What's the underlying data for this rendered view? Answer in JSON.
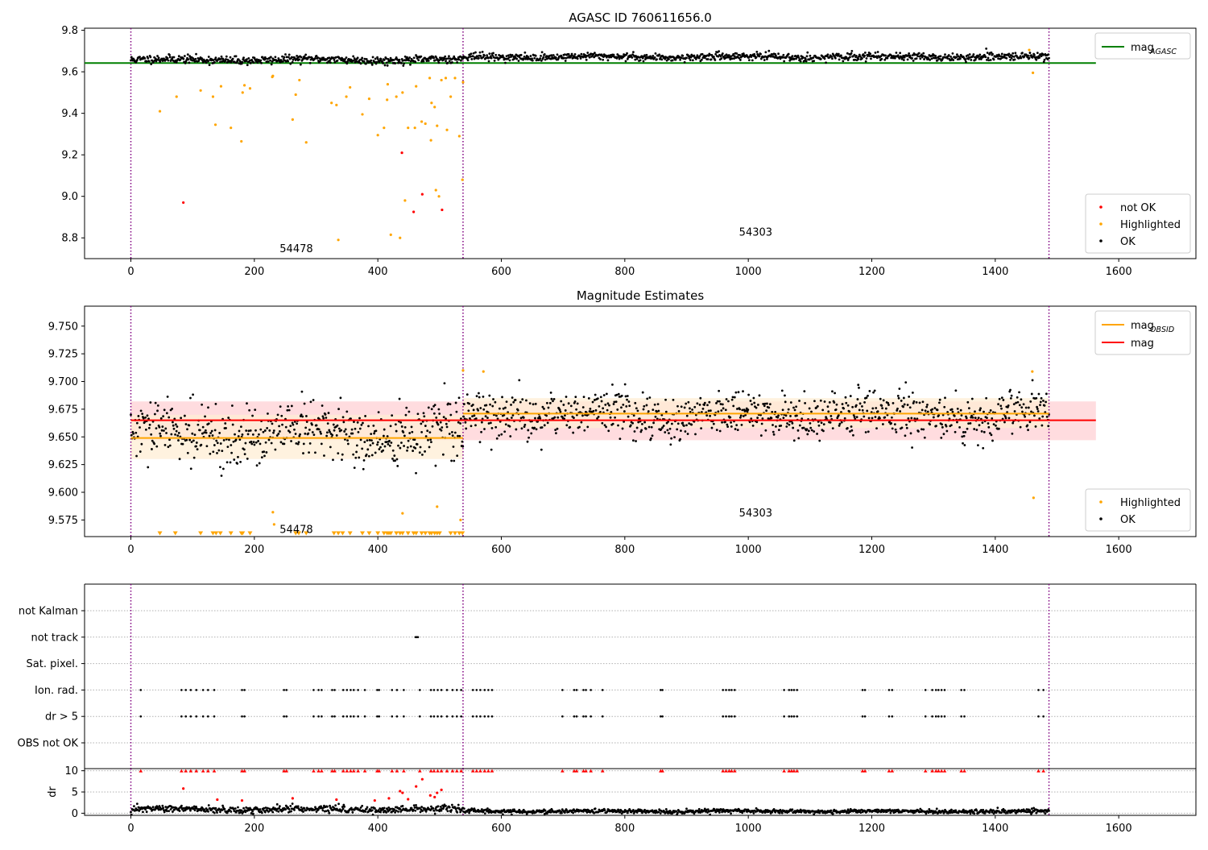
{
  "colors": {
    "ok": "#000000",
    "highlighted": "#ffa500",
    "not_ok": "#ff0000",
    "agasc_line": "#008000",
    "mag_line": "#ff0000",
    "obsid_line": "#ffa500",
    "obsid_boundary": "#800080",
    "mag_band": "#ffd0d4",
    "obsid_band": "#ffedd4",
    "grid": "#b0b0b0"
  },
  "chart_data": [
    {
      "type": "scatter",
      "title": "AGASC ID 760611656.0",
      "xlim": [
        -75,
        1725
      ],
      "ylim": [
        8.7,
        9.81
      ],
      "xticks": [
        0,
        200,
        400,
        600,
        800,
        1000,
        1200,
        1400,
        1600
      ],
      "yticks": [
        8.8,
        9.0,
        9.2,
        9.4,
        9.6,
        9.8
      ],
      "obsid_boundaries": [
        0,
        538,
        1487
      ],
      "annotations": [
        {
          "text": "54478",
          "x": 268,
          "y": 8.75
        },
        {
          "text": "54303",
          "x": 1012,
          "y": 8.83
        }
      ],
      "reference_lines": [
        {
          "name": "mag_AGASC",
          "label_main": "mag",
          "label_sub": "AGASC",
          "y": 9.642,
          "x_range": [
            -75,
            1563
          ],
          "color": "#008000"
        }
      ],
      "legend_lines": {
        "position": "top-right",
        "entries": [
          {
            "main": "mag",
            "sub": "AGASC",
            "color": "#008000"
          }
        ]
      },
      "legend_points": {
        "position": "bottom-right",
        "entries": [
          {
            "label": "not OK",
            "color": "#ff0000"
          },
          {
            "label": "Highlighted",
            "color": "#ffa500"
          },
          {
            "label": "OK",
            "color": "#000000"
          }
        ]
      },
      "series": [
        {
          "name": "OK",
          "color": "#000000",
          "generated": {
            "x_range": [
              0,
              1487
            ],
            "segments": [
              {
                "x_range": [
                  0,
                  538
                ],
                "mean": 9.658,
                "spread": 0.012
              },
              {
                "x_range": [
                  538,
                  1487
                ],
                "mean": 9.672,
                "spread": 0.011
              }
            ],
            "count": 1450
          }
        },
        {
          "name": "Highlighted",
          "color": "#ffa500",
          "x": [
            47,
            74,
            113,
            133,
            137,
            146,
            162,
            179,
            181,
            184,
            193,
            229,
            230,
            262,
            267,
            273,
            284,
            325,
            333,
            336,
            349,
            355,
            375,
            386,
            400,
            410,
            415,
            416,
            421,
            430,
            436,
            440,
            444,
            449,
            460,
            462,
            471,
            477,
            484,
            486,
            487,
            492,
            494,
            496,
            499,
            503,
            510,
            512,
            518,
            525,
            532,
            537,
            538,
            1455,
            1461
          ],
          "y": [
            9.41,
            9.48,
            9.51,
            9.48,
            9.345,
            9.53,
            9.33,
            9.265,
            9.5,
            9.535,
            9.52,
            9.575,
            9.58,
            9.37,
            9.49,
            9.56,
            9.26,
            9.45,
            9.44,
            8.79,
            9.48,
            9.525,
            9.395,
            9.47,
            9.295,
            9.33,
            9.465,
            9.54,
            8.815,
            9.48,
            8.8,
            9.5,
            8.98,
            9.33,
            9.33,
            9.53,
            9.36,
            9.35,
            9.57,
            9.27,
            9.45,
            9.43,
            9.03,
            9.34,
            9.0,
            9.56,
            9.57,
            9.32,
            9.48,
            9.57,
            9.29,
            9.08,
            9.55,
            9.705,
            9.595
          ]
        },
        {
          "name": "not OK",
          "color": "#ff0000",
          "x": [
            85,
            439,
            458,
            472,
            504
          ],
          "y": [
            8.97,
            9.21,
            8.925,
            9.01,
            8.935
          ]
        }
      ]
    },
    {
      "type": "scatter",
      "title": "Magnitude Estimates",
      "xlim": [
        -75,
        1725
      ],
      "ylim": [
        9.56,
        9.768
      ],
      "xticks": [
        0,
        200,
        400,
        600,
        800,
        1000,
        1200,
        1400,
        1600
      ],
      "yticks": [
        9.575,
        9.6,
        9.625,
        9.65,
        9.675,
        9.7,
        9.725,
        9.75
      ],
      "obsid_boundaries": [
        0,
        538,
        1487
      ],
      "annotations": [
        {
          "text": "54478",
          "x": 268,
          "y": 9.567
        },
        {
          "text": "54303",
          "x": 1012,
          "y": 9.582
        }
      ],
      "bands": [
        {
          "name": "mag_band",
          "y_range": [
            9.647,
            9.682
          ],
          "x_range": [
            0,
            1563
          ],
          "color": "#ffd0d4"
        },
        {
          "name": "obsid_band_1",
          "y_range": [
            9.63,
            9.67
          ],
          "x_range": [
            0,
            538
          ],
          "color": "#ffedd4"
        },
        {
          "name": "obsid_band_2",
          "y_range": [
            9.658,
            9.685
          ],
          "x_range": [
            538,
            1487
          ],
          "color": "#ffedd4"
        }
      ],
      "reference_lines": [
        {
          "name": "mag_OBSID_1",
          "y": 9.649,
          "x_range": [
            0,
            538
          ],
          "color": "#ffa500"
        },
        {
          "name": "mag_OBSID_2",
          "y": 9.671,
          "x_range": [
            538,
            1487
          ],
          "color": "#ffa500"
        },
        {
          "name": "mag",
          "y": 9.665,
          "x_range": [
            0,
            1563
          ],
          "color": "#ff0000"
        }
      ],
      "legend_lines": {
        "position": "top-right",
        "entries": [
          {
            "main": "mag",
            "sub": "OBSID",
            "color": "#ffa500"
          },
          {
            "main": "mag",
            "sub": "",
            "color": "#ff0000"
          }
        ]
      },
      "legend_points": {
        "position": "bottom-right",
        "entries": [
          {
            "label": "Highlighted",
            "color": "#ffa500"
          },
          {
            "label": "OK",
            "color": "#000000"
          }
        ]
      },
      "series": [
        {
          "name": "OK",
          "color": "#000000",
          "generated": {
            "x_range": [
              0,
              1487
            ],
            "segments": [
              {
                "x_range": [
                  0,
                  538
                ],
                "mean": 9.652,
                "spread": 0.016
              },
              {
                "x_range": [
                  538,
                  1487
                ],
                "mean": 9.67,
                "spread": 0.013
              }
            ],
            "count": 1450
          }
        },
        {
          "name": "Highlighted",
          "color": "#ffa500",
          "x": [
            230,
            232,
            440,
            496,
            534,
            538,
            571,
            1460,
            1462
          ],
          "y": [
            9.582,
            9.571,
            9.581,
            9.587,
            9.575,
            9.71,
            9.709,
            9.709,
            9.595
          ]
        },
        {
          "name": "Highlighted (below range)",
          "color": "#ffa500",
          "marker": "triangle-down",
          "x": [
            47,
            72,
            113,
            133,
            138,
            145,
            162,
            179,
            181,
            193,
            267,
            272,
            284,
            329,
            336,
            343,
            355,
            375,
            386,
            400,
            410,
            415,
            418,
            421,
            430,
            436,
            440,
            449,
            458,
            462,
            471,
            477,
            484,
            487,
            492,
            496,
            500,
            518,
            525,
            532,
            537
          ],
          "y_value": "below"
        }
      ]
    },
    {
      "type": "scatter",
      "title": "",
      "xlim": [
        -75,
        1725
      ],
      "flag_rows": [
        "not Kalman",
        "not track",
        "Sat. pixel.",
        "Ion. rad.",
        "dr > 5",
        "OBS not OK"
      ],
      "obsid_boundaries": [
        0,
        538,
        1487
      ],
      "flag_events": {
        "not track": [
          461,
          463,
          465
        ],
        "Ion. rad.": [
          16,
          82,
          89,
          97,
          106,
          117,
          125,
          135,
          180,
          184,
          248,
          252,
          296,
          304,
          309,
          326,
          330,
          344,
          350,
          356,
          361,
          368,
          379,
          399,
          402,
          423,
          431,
          442,
          468,
          486,
          491,
          497,
          503,
          512,
          521,
          528,
          535,
          554,
          560,
          566,
          573,
          579,
          585,
          699,
          718,
          722,
          733,
          737,
          745,
          764,
          858,
          861,
          959,
          964,
          969,
          973,
          978,
          1058,
          1066,
          1070,
          1074,
          1079,
          1185,
          1189,
          1228,
          1233,
          1287,
          1298,
          1304,
          1308,
          1313,
          1318,
          1345,
          1350,
          1470,
          1478
        ],
        "dr > 5": [
          16,
          82,
          89,
          97,
          106,
          117,
          125,
          135,
          180,
          184,
          248,
          252,
          296,
          304,
          309,
          326,
          330,
          344,
          350,
          356,
          361,
          368,
          379,
          399,
          402,
          423,
          431,
          442,
          468,
          486,
          491,
          497,
          503,
          512,
          521,
          528,
          535,
          554,
          560,
          566,
          573,
          579,
          585,
          699,
          718,
          722,
          733,
          737,
          745,
          764,
          858,
          861,
          959,
          964,
          969,
          973,
          978,
          1058,
          1066,
          1070,
          1074,
          1079,
          1185,
          1189,
          1228,
          1233,
          1287,
          1298,
          1304,
          1308,
          1313,
          1318,
          1345,
          1350,
          1470,
          1478
        ]
      }
    },
    {
      "type": "scatter",
      "title": "",
      "ylabel": "dr",
      "xlim": [
        -75,
        1725
      ],
      "ylim": [
        -0.5,
        10.5
      ],
      "xticks": [
        0,
        200,
        400,
        600,
        800,
        1000,
        1200,
        1400,
        1600
      ],
      "yticks": [
        0,
        5,
        10
      ],
      "obsid_boundaries": [
        0,
        538,
        1487
      ],
      "series": [
        {
          "name": "dr",
          "color": "#000000",
          "generated": {
            "x_range": [
              0,
              1487
            ],
            "segments": [
              {
                "x_range": [
                  0,
                  538
                ],
                "mean": 0.9,
                "spread": 0.5
              },
              {
                "x_range": [
                  538,
                  1487
                ],
                "mean": 0.45,
                "spread": 0.3
              }
            ],
            "count": 1450
          }
        },
        {
          "name": "dr > 5",
          "color": "#ff0000",
          "x": [
            85,
            140,
            180,
            262,
            333,
            395,
            418,
            436,
            440,
            449,
            462,
            472,
            485,
            492,
            496,
            503
          ],
          "y": [
            5.8,
            3.2,
            3.0,
            3.5,
            3.2,
            3.0,
            3.5,
            5.2,
            4.8,
            3.3,
            6.3,
            8.0,
            4.2,
            3.8,
            4.8,
            5.5
          ]
        },
        {
          "name": "dr > 10",
          "color": "#ff0000",
          "marker": "triangle-up",
          "x": [
            16,
            82,
            89,
            97,
            106,
            117,
            125,
            135,
            180,
            184,
            248,
            252,
            296,
            304,
            309,
            326,
            330,
            344,
            350,
            356,
            361,
            368,
            379,
            399,
            402,
            423,
            431,
            442,
            468,
            486,
            491,
            497,
            503,
            512,
            521,
            528,
            535,
            554,
            560,
            566,
            573,
            579,
            585,
            699,
            718,
            722,
            733,
            737,
            745,
            764,
            858,
            861,
            959,
            964,
            969,
            973,
            978,
            1058,
            1066,
            1070,
            1074,
            1079,
            1185,
            1189,
            1228,
            1233,
            1287,
            1298,
            1304,
            1308,
            1313,
            1318,
            1345,
            1350,
            1470,
            1478
          ],
          "y_value": 10
        }
      ]
    }
  ]
}
